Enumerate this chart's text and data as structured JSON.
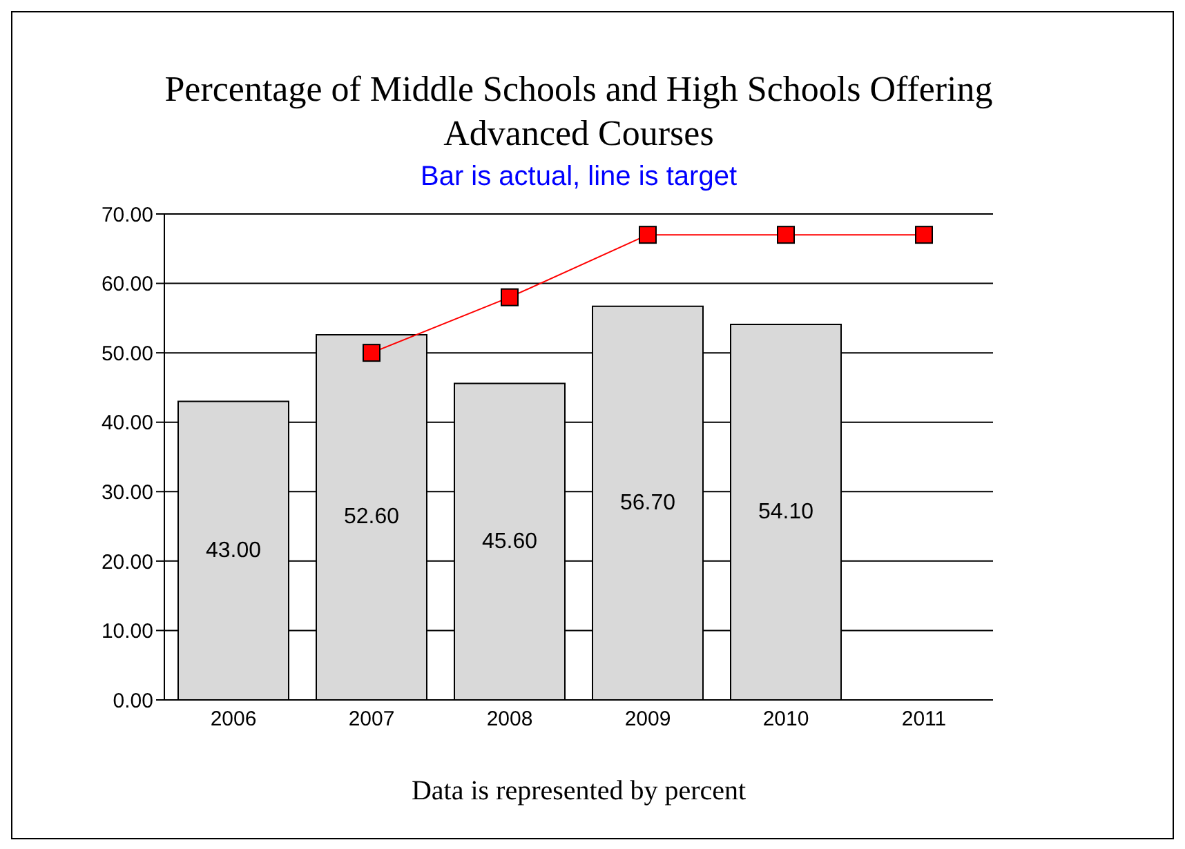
{
  "chart_data": {
    "type": "bar",
    "title": "Percentage of Middle Schools and High Schools Offering Advanced Courses",
    "subtitle": "Bar is actual, line is target",
    "annotations": [
      "Data is represented by percent"
    ],
    "categories": [
      "2006",
      "2007",
      "2008",
      "2009",
      "2010",
      "2011"
    ],
    "series": [
      {
        "color": "#d9d9d9",
        "values": [
          43.0,
          52.6,
          45.6,
          56.7,
          54.1,
          null
        ],
        "value_labels": [
          "43.00",
          "52.60",
          "45.60",
          "56.70",
          "54.10",
          null
        ]
      },
      {
        "type": "line",
        "color": "#ff0000",
        "marker": "square",
        "values": [
          null,
          50,
          58,
          67,
          67,
          67
        ]
      }
    ],
    "ylim": [
      0,
      70
    ],
    "yticks": [
      {
        "value": 0,
        "label": "0.00"
      },
      {
        "value": 10,
        "label": "10.00"
      },
      {
        "value": 20,
        "label": "20.00"
      },
      {
        "value": 30,
        "label": "30.00"
      },
      {
        "value": 40,
        "label": "40.00"
      },
      {
        "value": 50,
        "label": "50.00"
      },
      {
        "value": 60,
        "label": "60.00"
      },
      {
        "value": 70,
        "label": "70.00"
      }
    ],
    "grid": "y"
  }
}
